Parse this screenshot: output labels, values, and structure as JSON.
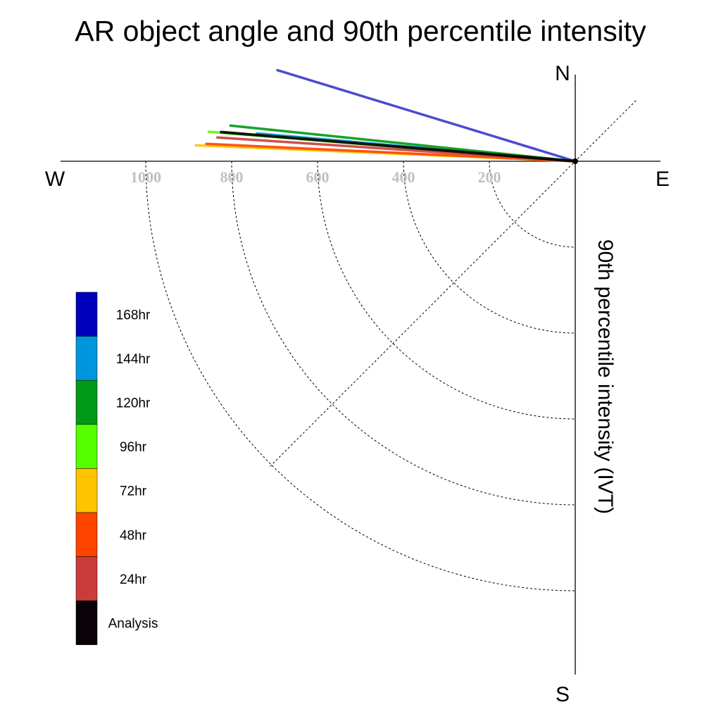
{
  "chart_data": {
    "type": "polar-vector",
    "title": "AR object angle and 90th percentile intensity",
    "radial_label": "90th percentile intensity (IVT)",
    "compass": {
      "north": "N",
      "south": "S",
      "east": "E",
      "west": "W"
    },
    "radial_ticks": [
      200,
      400,
      600,
      800,
      1000
    ],
    "radial_tick_labels": [
      "200",
      "400",
      "600",
      "800",
      "1000"
    ],
    "r_max": 1200,
    "angle_convention": "degrees counterclockwise from East",
    "series": [
      {
        "name": "Analysis",
        "color": "#000000",
        "angle_deg": 175.3,
        "intensity": 827
      },
      {
        "name": "24hr",
        "color": "#cc3b3b",
        "angle_deg": 176.2,
        "intensity": 835
      },
      {
        "name": "48hr",
        "color": "#ff4400",
        "angle_deg": 177.3,
        "intensity": 860
      },
      {
        "name": "72hr",
        "color": "#ffc400",
        "angle_deg": 177.6,
        "intensity": 884
      },
      {
        "name": "96hr",
        "color": "#55ff00",
        "angle_deg": 175.4,
        "intensity": 856
      },
      {
        "name": "120hr",
        "color": "#009a16",
        "angle_deg": 174.1,
        "intensity": 807
      },
      {
        "name": "144hr",
        "color": "#0096dd",
        "angle_deg": 175.0,
        "intensity": 744
      },
      {
        "name": "168hr",
        "color": "#0000bb",
        "angle_deg": 163.0,
        "intensity": 725
      }
    ],
    "legend": [
      "168hr",
      "144hr",
      "120hr",
      "96hr",
      "72hr",
      "48hr",
      "24hr",
      "Analysis"
    ],
    "legend_placement": "lower-left"
  }
}
